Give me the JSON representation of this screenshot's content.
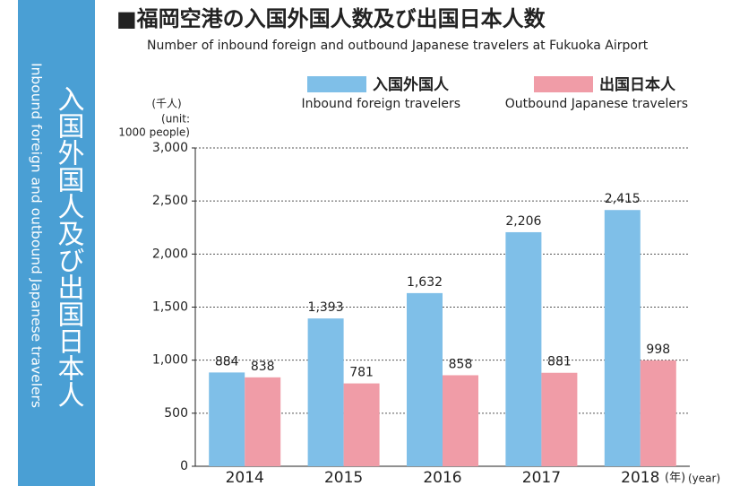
{
  "side_title": "入国外国人及び出国日本人",
  "side_subtitle": "Inbound foreign and outbound Japanese travelers",
  "chart_data": {
    "type": "bar",
    "title": "■福岡空港の入国外国人数及び出国日本人数",
    "subtitle": "Number of inbound foreign and outbound Japanese travelers at Fukuoka Airport",
    "y_unit_label": "(千人)",
    "y_unit_label_en": [
      "(unit:",
      "1000 people)"
    ],
    "x_unit_label": "(年)",
    "x_unit_label_en": "(year)",
    "categories": [
      "2014",
      "2015",
      "2016",
      "2017",
      "2018"
    ],
    "series": [
      {
        "name": "入国外国人",
        "name_en": "Inbound foreign travelers",
        "color": "#7fbfe8",
        "values": [
          884,
          1393,
          1632,
          2206,
          2415
        ],
        "value_labels": [
          "884",
          "1,393",
          "1,632",
          "2,206",
          "2,415"
        ]
      },
      {
        "name": "出国日本人",
        "name_en": "Outbound Japanese travelers",
        "color": "#f09ca7",
        "values": [
          838,
          781,
          858,
          881,
          998
        ],
        "value_labels": [
          "838",
          "781",
          "858",
          "881",
          "998"
        ]
      }
    ],
    "ylim": [
      0,
      3000
    ],
    "yticks": [
      0,
      500,
      {
        "value": 1000,
        "label": "1,000"
      },
      {
        "value": 1500,
        "label": "1,500"
      },
      {
        "value": 2000,
        "label": "2,000"
      },
      {
        "value": 2500,
        "label": "2,500"
      },
      {
        "value": 3000,
        "label": "3,000"
      }
    ],
    "grid": true
  }
}
